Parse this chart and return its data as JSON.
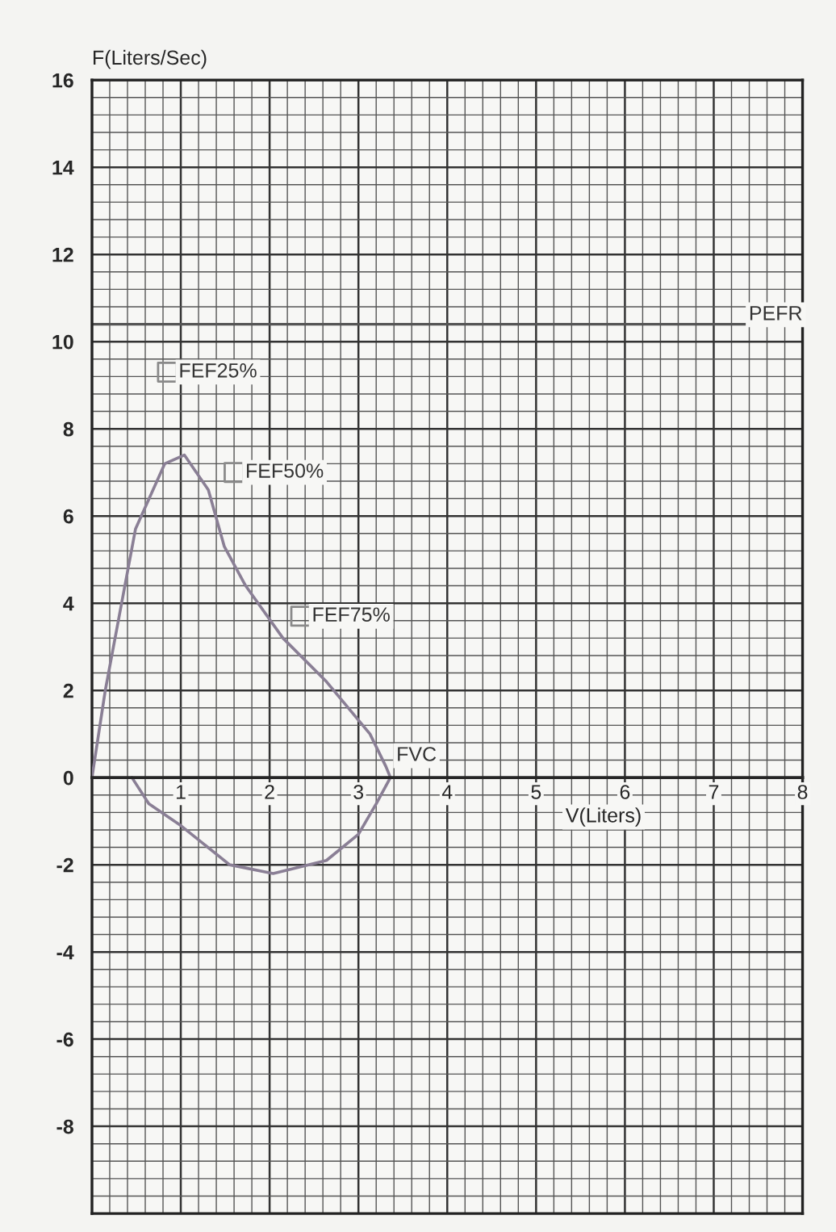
{
  "chart_data": {
    "type": "line",
    "ylabel": "F(Liters/Sec)",
    "xlabel": "V(Liters)",
    "series": [
      {
        "type": "line",
        "color": "#8a7f95",
        "x": [
          0,
          0.15,
          0.49,
          0.82,
          1.04,
          1.31,
          1.49,
          1.73,
          2.15,
          2.64,
          3.13,
          3.31,
          3.36,
          3.2,
          3.0,
          2.64,
          2.04,
          1.55,
          1.0,
          0.64,
          0.45
        ],
        "values": [
          0,
          2.0,
          5.7,
          7.2,
          7.4,
          6.6,
          5.3,
          4.4,
          3.2,
          2.2,
          1.0,
          0.25,
          0,
          -0.6,
          -1.3,
          -1.9,
          -2.2,
          -2.0,
          -1.1,
          -0.6,
          0
        ]
      },
      {
        "type": "scatter",
        "color": "#8a8a8a",
        "marker": "square",
        "x": [
          0.85,
          1.6,
          2.35
        ],
        "values": [
          9.3,
          7.0,
          3.7
        ]
      }
    ],
    "annotations": [
      {
        "text": "FEF25%",
        "x": 0.85,
        "y": 9.3
      },
      {
        "text": "FEF50%",
        "x": 1.6,
        "y": 7.0
      },
      {
        "text": "FEF75%",
        "x": 2.35,
        "y": 3.7
      },
      {
        "text": "FVC",
        "x": 3.3,
        "y": 0.5
      }
    ],
    "ref_lines": [
      {
        "axis": "y",
        "value": 10.4,
        "label": "PEFR",
        "color": "#555555"
      }
    ],
    "xlim": [
      0,
      8
    ],
    "ylim": [
      -10,
      16
    ],
    "xticks": [
      {
        "value": 0,
        "label": null
      },
      1,
      2,
      3,
      4,
      5,
      6,
      7,
      8
    ],
    "yticks": [
      -8,
      -6,
      -4,
      -2,
      0,
      2,
      4,
      6,
      8,
      10,
      12,
      14,
      16
    ],
    "grid": true
  }
}
